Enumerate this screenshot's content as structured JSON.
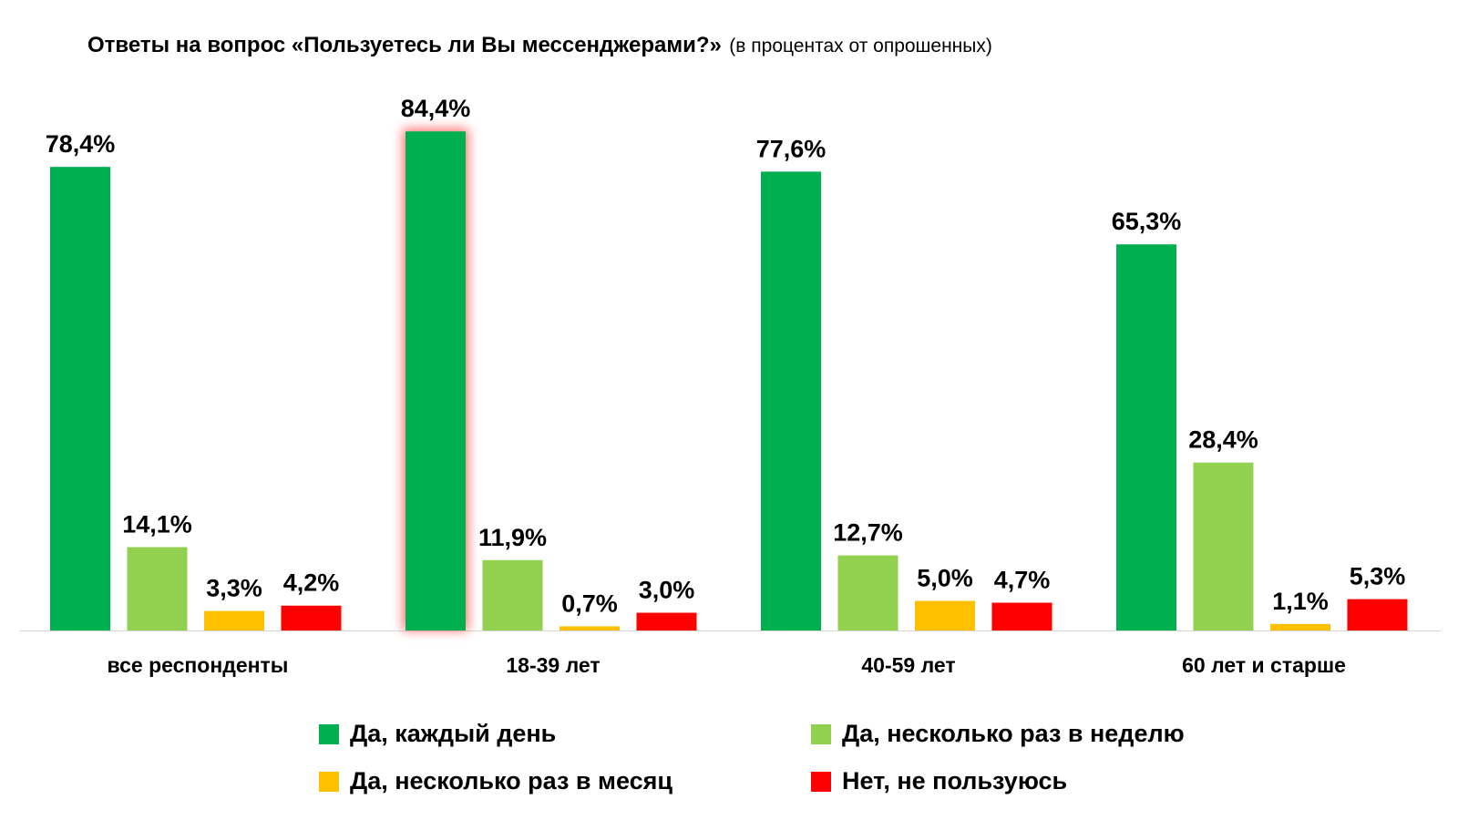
{
  "chart_data": {
    "type": "bar",
    "title": "Ответы на вопрос «Пользуетесь ли Вы мессенджерами?»",
    "subtitle": "(в процентах от опрошенных)",
    "categories": [
      "все респонденты",
      "18-39 лет",
      "40-59 лет",
      "60 лет и старше"
    ],
    "series": [
      {
        "name": "Да, каждый день",
        "color": "#00b050",
        "values": [
          78.4,
          84.4,
          77.6,
          65.3
        ],
        "labels": [
          "78,4%",
          "84,4%",
          "77,6%",
          "65,3%"
        ]
      },
      {
        "name": "Да, несколько раз в неделю",
        "color": "#92d050",
        "values": [
          14.1,
          11.9,
          12.7,
          28.4
        ],
        "labels": [
          "14,1%",
          "11,9%",
          "12,7%",
          "28,4%"
        ]
      },
      {
        "name": "Да, несколько раз в месяц",
        "color": "#ffc000",
        "values": [
          3.3,
          0.7,
          5.0,
          1.1
        ],
        "labels": [
          "3,3%",
          "0,7%",
          "5,0%",
          "1,1%"
        ]
      },
      {
        "name": "Нет, не пользуюсь",
        "color": "#ff0000",
        "values": [
          4.2,
          3.0,
          4.7,
          5.3
        ],
        "labels": [
          "4,2%",
          "3,0%",
          "4,7%",
          "5,3%"
        ]
      }
    ],
    "highlight": {
      "series": 0,
      "category": 1,
      "color": "#ff0000"
    },
    "ylim": [
      0,
      100
    ],
    "grid": false,
    "legend_position": "bottom"
  }
}
